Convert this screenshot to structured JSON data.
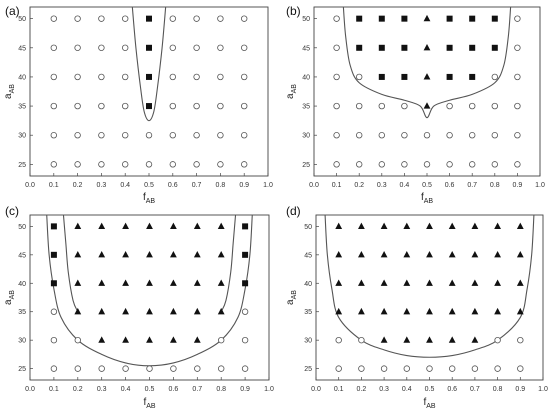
{
  "chart_data": [
    {
      "type": "scatter",
      "panel_label": "(a)",
      "xlabel": {
        "main": "f",
        "sub": "AB"
      },
      "ylabel": {
        "main": "a",
        "sub": "AB"
      },
      "xlim": [
        0.0,
        1.0
      ],
      "ylim": [
        23,
        52
      ],
      "xticks": [
        "0.0",
        "0.1",
        "0.2",
        "0.3",
        "0.4",
        "0.5",
        "0.6",
        "0.7",
        "0.8",
        "0.9",
        "1.0"
      ],
      "yticks": [
        "25",
        "30",
        "35",
        "40",
        "45",
        "50"
      ],
      "x_grid": [
        0.1,
        0.2,
        0.3,
        0.4,
        0.5,
        0.6,
        0.7,
        0.8,
        0.9
      ],
      "y_grid": [
        25,
        30,
        35,
        40,
        45,
        50
      ],
      "series": [
        {
          "marker": "square",
          "points": [
            [
              0.5,
              35
            ],
            [
              0.5,
              40
            ],
            [
              0.5,
              45
            ],
            [
              0.5,
              50
            ]
          ]
        },
        {
          "marker": "triangle",
          "points": []
        }
      ],
      "default_marker": "open-circle",
      "boundary_curves": [
        [
          [
            0.43,
            52
          ],
          [
            0.445,
            45
          ],
          [
            0.465,
            38
          ],
          [
            0.48,
            34
          ],
          [
            0.5,
            32.5
          ],
          [
            0.52,
            34
          ],
          [
            0.535,
            38
          ],
          [
            0.555,
            45
          ],
          [
            0.57,
            52
          ]
        ]
      ]
    },
    {
      "type": "scatter",
      "panel_label": "(b)",
      "xlabel": {
        "main": "f",
        "sub": "AB"
      },
      "ylabel": {
        "main": "a",
        "sub": "AB"
      },
      "xlim": [
        0.0,
        1.0
      ],
      "ylim": [
        23,
        52
      ],
      "xticks": [
        "0.0",
        "0.1",
        "0.2",
        "0.3",
        "0.4",
        "0.5",
        "0.6",
        "0.7",
        "0.8",
        "0.9",
        "1.0"
      ],
      "yticks": [
        "25",
        "30",
        "35",
        "40",
        "45",
        "50"
      ],
      "x_grid": [
        0.1,
        0.2,
        0.3,
        0.4,
        0.5,
        0.6,
        0.7,
        0.8,
        0.9
      ],
      "y_grid": [
        25,
        30,
        35,
        40,
        45,
        50
      ],
      "series": [
        {
          "marker": "square",
          "points": [
            [
              0.2,
              50
            ],
            [
              0.3,
              50
            ],
            [
              0.4,
              50
            ],
            [
              0.6,
              50
            ],
            [
              0.7,
              50
            ],
            [
              0.8,
              50
            ],
            [
              0.2,
              45
            ],
            [
              0.3,
              45
            ],
            [
              0.4,
              45
            ],
            [
              0.6,
              45
            ],
            [
              0.7,
              45
            ],
            [
              0.8,
              45
            ],
            [
              0.3,
              40
            ],
            [
              0.4,
              40
            ],
            [
              0.6,
              40
            ],
            [
              0.7,
              40
            ]
          ]
        },
        {
          "marker": "triangle",
          "points": [
            [
              0.5,
              50
            ],
            [
              0.5,
              45
            ],
            [
              0.5,
              40
            ],
            [
              0.5,
              35
            ]
          ]
        }
      ],
      "default_marker": "open-circle",
      "boundary_curves": [
        [
          [
            0.13,
            52
          ],
          [
            0.14,
            47
          ],
          [
            0.16,
            42
          ],
          [
            0.2,
            39
          ],
          [
            0.3,
            37
          ],
          [
            0.4,
            36
          ],
          [
            0.47,
            35
          ],
          [
            0.5,
            33
          ],
          [
            0.53,
            35
          ],
          [
            0.6,
            36
          ],
          [
            0.7,
            37
          ],
          [
            0.8,
            39
          ],
          [
            0.84,
            42
          ],
          [
            0.86,
            47
          ],
          [
            0.87,
            52
          ]
        ]
      ]
    },
    {
      "type": "scatter",
      "panel_label": "(c)",
      "xlabel": {
        "main": "f",
        "sub": "AB"
      },
      "ylabel": {
        "main": "a",
        "sub": "AB"
      },
      "xlim": [
        0.0,
        1.0
      ],
      "ylim": [
        23,
        52
      ],
      "xticks": [
        "0.0",
        "0.1",
        "0.2",
        "0.3",
        "0.4",
        "0.5",
        "0.6",
        "0.7",
        "0.8",
        "0.9",
        "1.0"
      ],
      "yticks": [
        "25",
        "30",
        "35",
        "40",
        "45",
        "50"
      ],
      "x_grid": [
        0.1,
        0.2,
        0.3,
        0.4,
        0.5,
        0.6,
        0.7,
        0.8,
        0.9
      ],
      "y_grid": [
        25,
        30,
        35,
        40,
        45,
        50
      ],
      "series": [
        {
          "marker": "square",
          "points": [
            [
              0.1,
              50
            ],
            [
              0.1,
              45
            ],
            [
              0.1,
              40
            ],
            [
              0.9,
              50
            ],
            [
              0.9,
              45
            ],
            [
              0.9,
              40
            ]
          ]
        },
        {
          "marker": "triangle",
          "points": [
            [
              0.2,
              50
            ],
            [
              0.3,
              50
            ],
            [
              0.4,
              50
            ],
            [
              0.5,
              50
            ],
            [
              0.6,
              50
            ],
            [
              0.7,
              50
            ],
            [
              0.8,
              50
            ],
            [
              0.2,
              45
            ],
            [
              0.3,
              45
            ],
            [
              0.4,
              45
            ],
            [
              0.5,
              45
            ],
            [
              0.6,
              45
            ],
            [
              0.7,
              45
            ],
            [
              0.8,
              45
            ],
            [
              0.2,
              40
            ],
            [
              0.3,
              40
            ],
            [
              0.4,
              40
            ],
            [
              0.5,
              40
            ],
            [
              0.6,
              40
            ],
            [
              0.7,
              40
            ],
            [
              0.8,
              40
            ],
            [
              0.2,
              35
            ],
            [
              0.3,
              35
            ],
            [
              0.4,
              35
            ],
            [
              0.5,
              35
            ],
            [
              0.6,
              35
            ],
            [
              0.7,
              35
            ],
            [
              0.8,
              35
            ],
            [
              0.3,
              30
            ],
            [
              0.4,
              30
            ],
            [
              0.5,
              30
            ],
            [
              0.6,
              30
            ],
            [
              0.7,
              30
            ]
          ]
        }
      ],
      "default_marker": "open-circle",
      "boundary_curves": [
        [
          [
            0.07,
            52
          ],
          [
            0.08,
            45
          ],
          [
            0.1,
            39
          ],
          [
            0.13,
            34
          ],
          [
            0.2,
            30
          ],
          [
            0.3,
            27.5
          ],
          [
            0.4,
            26
          ],
          [
            0.5,
            25.5
          ],
          [
            0.6,
            26
          ],
          [
            0.7,
            27.5
          ],
          [
            0.8,
            30
          ],
          [
            0.87,
            34
          ],
          [
            0.9,
            39
          ],
          [
            0.92,
            45
          ],
          [
            0.93,
            52
          ]
        ],
        [
          [
            0.14,
            52
          ],
          [
            0.15,
            47
          ],
          [
            0.16,
            42
          ],
          [
            0.18,
            37
          ],
          [
            0.2,
            35
          ]
        ],
        [
          [
            0.86,
            52
          ],
          [
            0.85,
            47
          ],
          [
            0.84,
            42
          ],
          [
            0.82,
            37
          ],
          [
            0.8,
            35
          ]
        ]
      ]
    },
    {
      "type": "scatter",
      "panel_label": "(d)",
      "xlabel": {
        "main": "f",
        "sub": "AB"
      },
      "ylabel": {
        "main": "a",
        "sub": "AB"
      },
      "xlim": [
        0.0,
        1.0
      ],
      "ylim": [
        23,
        52
      ],
      "xticks": [
        "0.0",
        "0.1",
        "0.2",
        "0.3",
        "0.4",
        "0.5",
        "0.6",
        "0.7",
        "0.8",
        "0.9",
        "1.0"
      ],
      "yticks": [
        "25",
        "30",
        "35",
        "40",
        "45",
        "50"
      ],
      "x_grid": [
        0.1,
        0.2,
        0.3,
        0.4,
        0.5,
        0.6,
        0.7,
        0.8,
        0.9
      ],
      "y_grid": [
        25,
        30,
        35,
        40,
        45,
        50
      ],
      "series": [
        {
          "marker": "square",
          "points": []
        },
        {
          "marker": "triangle",
          "points": [
            [
              0.1,
              50
            ],
            [
              0.2,
              50
            ],
            [
              0.3,
              50
            ],
            [
              0.4,
              50
            ],
            [
              0.5,
              50
            ],
            [
              0.6,
              50
            ],
            [
              0.7,
              50
            ],
            [
              0.8,
              50
            ],
            [
              0.9,
              50
            ],
            [
              0.1,
              45
            ],
            [
              0.2,
              45
            ],
            [
              0.3,
              45
            ],
            [
              0.4,
              45
            ],
            [
              0.5,
              45
            ],
            [
              0.6,
              45
            ],
            [
              0.7,
              45
            ],
            [
              0.8,
              45
            ],
            [
              0.9,
              45
            ],
            [
              0.1,
              40
            ],
            [
              0.2,
              40
            ],
            [
              0.3,
              40
            ],
            [
              0.4,
              40
            ],
            [
              0.5,
              40
            ],
            [
              0.6,
              40
            ],
            [
              0.7,
              40
            ],
            [
              0.8,
              40
            ],
            [
              0.9,
              40
            ],
            [
              0.1,
              35
            ],
            [
              0.2,
              35
            ],
            [
              0.3,
              35
            ],
            [
              0.4,
              35
            ],
            [
              0.5,
              35
            ],
            [
              0.6,
              35
            ],
            [
              0.7,
              35
            ],
            [
              0.8,
              35
            ],
            [
              0.9,
              35
            ],
            [
              0.3,
              30
            ],
            [
              0.4,
              30
            ],
            [
              0.5,
              30
            ],
            [
              0.6,
              30
            ],
            [
              0.7,
              30
            ]
          ]
        }
      ],
      "default_marker": "open-circle",
      "boundary_curves": [
        [
          [
            0.04,
            52
          ],
          [
            0.05,
            45
          ],
          [
            0.07,
            39
          ],
          [
            0.1,
            34
          ],
          [
            0.2,
            30
          ],
          [
            0.3,
            28.3
          ],
          [
            0.4,
            27.3
          ],
          [
            0.5,
            27
          ],
          [
            0.6,
            27.3
          ],
          [
            0.7,
            28.3
          ],
          [
            0.8,
            30
          ],
          [
            0.9,
            34
          ],
          [
            0.93,
            39
          ],
          [
            0.95,
            45
          ],
          [
            0.96,
            52
          ]
        ]
      ]
    }
  ]
}
